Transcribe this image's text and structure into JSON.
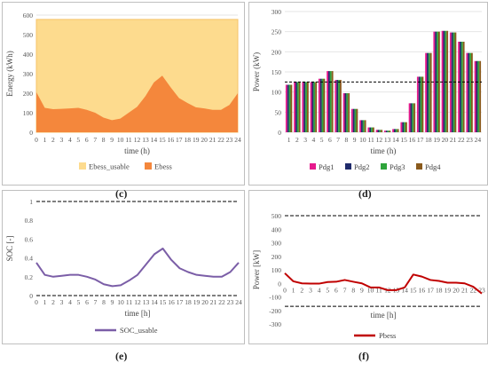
{
  "captions": [
    "(c)",
    "(d)",
    "(e)",
    "(f)"
  ],
  "chart_data": [
    {
      "id": "c",
      "type": "area",
      "xlabel": "time (h)",
      "ylabel": "Energy (kWh)",
      "x": [
        0,
        1,
        2,
        3,
        4,
        5,
        6,
        7,
        8,
        9,
        10,
        11,
        12,
        13,
        14,
        15,
        16,
        17,
        18,
        19,
        20,
        21,
        22,
        23,
        24
      ],
      "ylim": [
        0,
        600
      ],
      "yticks": [
        0,
        100,
        200,
        300,
        400,
        500,
        600
      ],
      "legend_position": "bottom",
      "series": [
        {
          "name": "Ebess_usable",
          "color": "#fddb8e",
          "edge": "#f5c36a",
          "values": [
            578,
            578,
            578,
            578,
            578,
            578,
            578,
            578,
            578,
            578,
            578,
            578,
            578,
            578,
            578,
            578,
            578,
            578,
            578,
            578,
            578,
            578,
            578,
            578,
            578
          ]
        },
        {
          "name": "Ebess",
          "color": "#f4873c",
          "values": [
            205,
            125,
            118,
            120,
            122,
            125,
            115,
            100,
            75,
            62,
            70,
            100,
            130,
            185,
            255,
            290,
            230,
            175,
            150,
            128,
            122,
            115,
            115,
            140,
            200
          ]
        }
      ]
    },
    {
      "id": "d",
      "type": "bar",
      "xlabel": "time (h)",
      "ylabel": "Power (kW)",
      "categories": [
        "1",
        "2",
        "3",
        "4",
        "5",
        "6",
        "7",
        "8",
        "9",
        "10",
        "11",
        "12",
        "13",
        "14",
        "15",
        "16",
        "17",
        "18",
        "19",
        "20",
        "21",
        "22",
        "23",
        "24"
      ],
      "ylim": [
        0,
        300
      ],
      "yticks": [
        0,
        50,
        100,
        150,
        200,
        250,
        300
      ],
      "reference_line": 125,
      "legend_position": "bottom",
      "series": [
        {
          "name": "Pdg1",
          "color": "#e6198c"
        },
        {
          "name": "Pdg2",
          "color": "#1f2a6b"
        },
        {
          "name": "Pdg3",
          "color": "#2ea43b"
        },
        {
          "name": "Pdg4",
          "color": "#8a5a1c"
        }
      ],
      "values": [
        118,
        125,
        125,
        125,
        133,
        152,
        130,
        97,
        58,
        30,
        12,
        6,
        4,
        8,
        25,
        72,
        138,
        197,
        250,
        252,
        248,
        225,
        197,
        177
      ]
    },
    {
      "id": "e",
      "type": "line",
      "xlabel": "time [h]",
      "ylabel": "SOC [-]",
      "x": [
        0,
        1,
        2,
        3,
        4,
        5,
        6,
        7,
        8,
        9,
        10,
        11,
        12,
        13,
        14,
        15,
        16,
        17,
        18,
        19,
        20,
        21,
        22,
        23,
        24
      ],
      "ylim": [
        0,
        1
      ],
      "yticks": [
        0,
        0.2,
        0.4,
        0.6,
        0.8,
        1
      ],
      "reference_lines": [
        0,
        1
      ],
      "legend_position": "bottom",
      "series": [
        {
          "name": "SOC_usable",
          "color": "#7b5ea7",
          "values": [
            0.35,
            0.22,
            0.2,
            0.21,
            0.22,
            0.22,
            0.2,
            0.17,
            0.12,
            0.1,
            0.11,
            0.16,
            0.22,
            0.33,
            0.44,
            0.5,
            0.38,
            0.29,
            0.25,
            0.22,
            0.21,
            0.2,
            0.2,
            0.25,
            0.35
          ]
        }
      ]
    },
    {
      "id": "f",
      "type": "line",
      "xlabel": "time [h]",
      "ylabel": "Power [kW]",
      "x": [
        0,
        1,
        2,
        3,
        4,
        5,
        6,
        7,
        8,
        9,
        10,
        11,
        12,
        13,
        14,
        15,
        16,
        17,
        18,
        19,
        20,
        21,
        22,
        23
      ],
      "ylim": [
        -300,
        500
      ],
      "yticks": [
        -300,
        -200,
        -100,
        0,
        100,
        200,
        300,
        400,
        500
      ],
      "reference_lines": [
        500,
        -170
      ],
      "legend_position": "bottom",
      "series": [
        {
          "name": "Pbess",
          "color": "#c00000",
          "values": [
            75,
            15,
            0,
            -2,
            -2,
            10,
            12,
            25,
            12,
            0,
            -30,
            -30,
            -50,
            -50,
            -30,
            65,
            50,
            25,
            18,
            5,
            5,
            0,
            -25,
            -75
          ]
        }
      ]
    }
  ]
}
